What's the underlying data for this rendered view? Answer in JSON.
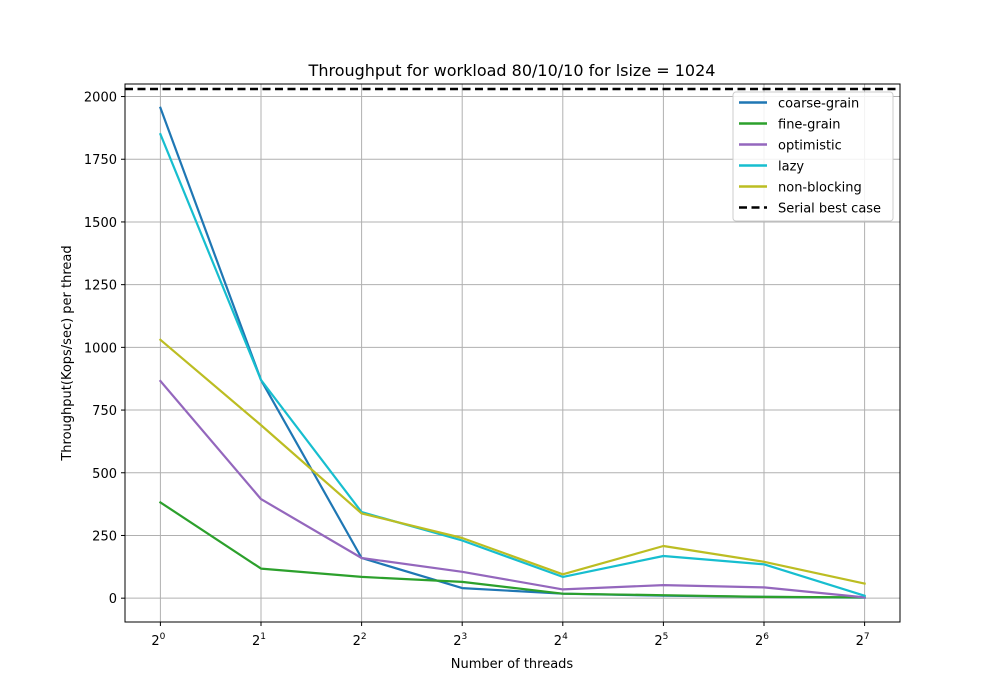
{
  "chart_data": {
    "type": "line",
    "title": "Throughput for workload 80/10/10 for lsize = 1024",
    "xlabel": "Number of threads",
    "ylabel": "Throughput(Kops/sec) per thread",
    "xscale": "log2",
    "x": [
      1,
      2,
      4,
      8,
      16,
      32,
      64,
      128
    ],
    "x_tick_labels": [
      {
        "base": "2",
        "exp": "0"
      },
      {
        "base": "2",
        "exp": "1"
      },
      {
        "base": "2",
        "exp": "2"
      },
      {
        "base": "2",
        "exp": "3"
      },
      {
        "base": "2",
        "exp": "4"
      },
      {
        "base": "2",
        "exp": "5"
      },
      {
        "base": "2",
        "exp": "6"
      },
      {
        "base": "2",
        "exp": "7"
      }
    ],
    "ylim": [
      -95,
      2050
    ],
    "y_ticks": [
      0,
      250,
      500,
      750,
      1000,
      1250,
      1500,
      1750,
      2000
    ],
    "grid": true,
    "legend_position": "top-right",
    "series": [
      {
        "name": "coarse-grain",
        "color": "#1f77b4",
        "values": [
          1955,
          870,
          160,
          40,
          18,
          10,
          5,
          2
        ]
      },
      {
        "name": "fine-grain",
        "color": "#2ca02c",
        "values": [
          382,
          118,
          85,
          65,
          18,
          12,
          5,
          3
        ]
      },
      {
        "name": "optimistic",
        "color": "#9467bd",
        "values": [
          866,
          395,
          160,
          105,
          35,
          52,
          43,
          3
        ]
      },
      {
        "name": "lazy",
        "color": "#17becf",
        "values": [
          1850,
          870,
          343,
          230,
          85,
          168,
          135,
          10
        ]
      },
      {
        "name": "non-blocking",
        "color": "#bcbd22",
        "values": [
          1030,
          690,
          338,
          240,
          95,
          208,
          145,
          58
        ]
      }
    ],
    "reference_line": {
      "name": "Serial best case",
      "color": "#000000",
      "value": 2030,
      "style": "dashed"
    }
  }
}
